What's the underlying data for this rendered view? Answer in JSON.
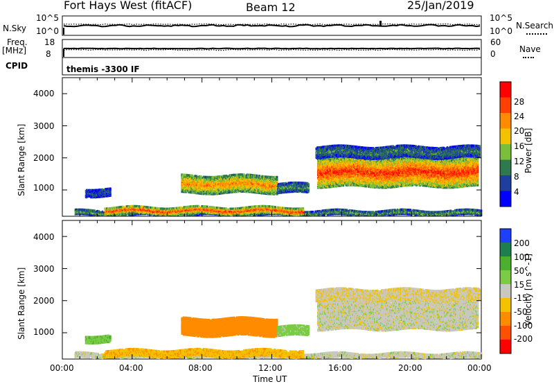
{
  "header": {
    "station": "Fort Hays West (fitACF)",
    "beam": "Beam 12",
    "date": "25/Jan/2019"
  },
  "top_panels": {
    "nsky_label": "N.Sky",
    "nsearch_label": "N.Search",
    "nsky_ticks": [
      "10^5",
      "10^0"
    ],
    "nsearch_ticks": [
      "10^5",
      "10^0"
    ],
    "freq_label": "Freq.",
    "freq_unit": "[MHz]",
    "freq_ticks": [
      "18",
      "8"
    ],
    "nave_label": "Nave",
    "nave_ticks": [
      "60",
      "0"
    ],
    "cpid_label": "CPID",
    "cpid_text": "themis -3300 IF"
  },
  "chart_data": [
    {
      "type": "heatmap",
      "name": "power",
      "ylabel": "Slant Range [km]",
      "ylim": [
        180,
        4500
      ],
      "yticks": [
        "4000",
        "3000",
        "2000",
        "1000"
      ],
      "colorbar_label": "Power [dB]",
      "colorbar_ticks": [
        "28",
        "24",
        "20",
        "16",
        "12",
        "8",
        "4"
      ],
      "colorscale": [
        "#0000ff",
        "#1f3f9f",
        "#2e7a4e",
        "#7abf3c",
        "#f2c200",
        "#ff8c00",
        "#ff4000",
        "#ff0000"
      ],
      "xlim": [
        0,
        24
      ],
      "regions": [
        {
          "t0": 0.7,
          "t1": 24.0,
          "r0": 200,
          "r1": 350,
          "v": 10
        },
        {
          "t0": 2.4,
          "t1": 13.8,
          "r0": 250,
          "r1": 450,
          "v": 22
        },
        {
          "t0": 1.3,
          "t1": 2.7,
          "r0": 800,
          "r1": 1050,
          "v": 6
        },
        {
          "t0": 6.8,
          "t1": 12.3,
          "r0": 900,
          "r1": 1450,
          "v": 18
        },
        {
          "t0": 12.3,
          "t1": 14.1,
          "r0": 900,
          "r1": 1200,
          "v": 9
        },
        {
          "t0": 14.6,
          "t1": 23.8,
          "r0": 1100,
          "r1": 2000,
          "v": 22
        },
        {
          "t0": 14.5,
          "t1": 23.9,
          "r0": 2000,
          "r1": 2350,
          "v": 8
        }
      ]
    },
    {
      "type": "heatmap",
      "name": "velocity",
      "ylabel": "Slant Range [km]",
      "ylim": [
        180,
        4500
      ],
      "yticks": [
        "4000",
        "3000",
        "2000",
        "1000"
      ],
      "colorbar_label": "Velocity [m s^-1]",
      "colorbar_ticks": [
        "200",
        "100",
        "50",
        "15",
        "-15",
        "-50",
        "-100",
        "-200"
      ],
      "colorscale": [
        "#1f3fff",
        "#1e7f4e",
        "#4caf2e",
        "#7bcc44",
        "#c8c8c0",
        "#f2c200",
        "#ff8c00",
        "#ff5000",
        "#ff0000"
      ],
      "xlim": [
        0,
        24
      ],
      "xticks": [
        "00:00",
        "04:00",
        "08:00",
        "12:00",
        "16:00",
        "20:00",
        "00:00"
      ],
      "xlabel": "Time UT",
      "regions": [
        {
          "t0": 0.7,
          "t1": 24.0,
          "r0": 200,
          "r1": 350,
          "v": 0
        },
        {
          "t0": 2.4,
          "t1": 13.8,
          "r0": 250,
          "r1": 450,
          "v": -40
        },
        {
          "t0": 1.3,
          "t1": 2.7,
          "r0": 700,
          "r1": 900,
          "v": 40
        },
        {
          "t0": 6.8,
          "t1": 12.3,
          "r0": 900,
          "r1": 1450,
          "v": -80
        },
        {
          "t0": 12.3,
          "t1": 14.1,
          "r0": 900,
          "r1": 1200,
          "v": 30
        },
        {
          "t0": 14.6,
          "t1": 23.8,
          "r0": 1100,
          "r1": 2000,
          "v": 0
        },
        {
          "t0": 14.5,
          "t1": 23.9,
          "r0": 2000,
          "r1": 2350,
          "v": -10
        }
      ]
    }
  ]
}
